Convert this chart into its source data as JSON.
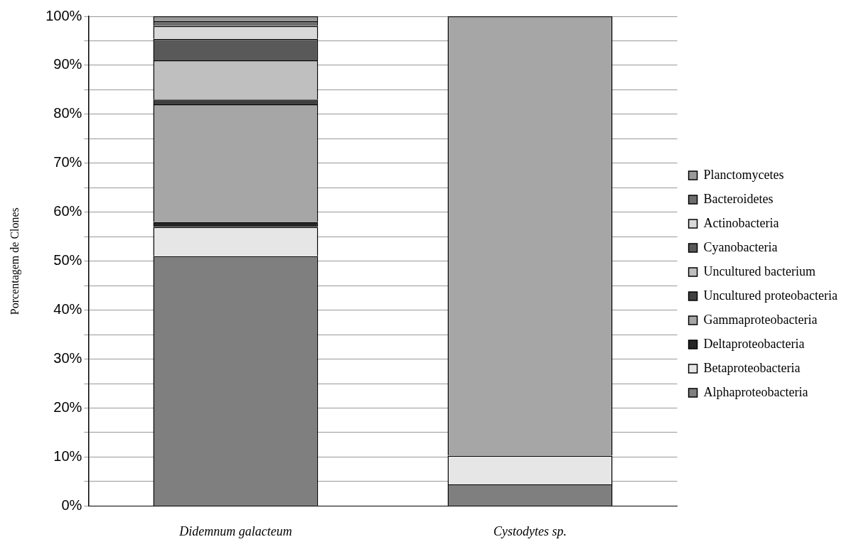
{
  "chart_data": {
    "type": "bar",
    "stacked": true,
    "ylabel": "Porcentagem de Clones",
    "categories": [
      "Didemnum galacteum",
      "Cystodytes sp."
    ],
    "series": [
      {
        "name": "Alphaproteobacteria",
        "color": "#7f7f7f",
        "values": [
          51,
          4.4
        ]
      },
      {
        "name": "Betaproteobacteria",
        "color": "#e6e6e6",
        "values": [
          6,
          5.9
        ]
      },
      {
        "name": "Deltaproteobacteria",
        "color": "#262626",
        "values": [
          1,
          null
        ]
      },
      {
        "name": "Gammaproteobacteria",
        "color": "#a6a6a6",
        "values": [
          24,
          89.7
        ]
      },
      {
        "name": "Uncultured proteobacteria",
        "color": "#404040",
        "values": [
          1,
          null
        ]
      },
      {
        "name": "Uncultured bacterium",
        "color": "#bfbfbf",
        "values": [
          8,
          null
        ]
      },
      {
        "name": "Cyanobacteria",
        "color": "#595959",
        "values": [
          4.4,
          null
        ]
      },
      {
        "name": "Actinobacteria",
        "color": "#d9d9d9",
        "values": [
          2.6,
          null
        ]
      },
      {
        "name": "Bacteroidetes",
        "color": "#6e6e6e",
        "values": [
          1,
          null
        ]
      },
      {
        "name": "Planctomycetes",
        "color": "#999999",
        "values": [
          1,
          null
        ]
      }
    ],
    "ylim": [
      0,
      100
    ],
    "yticks": [
      {
        "value": 0,
        "label": "0%"
      },
      {
        "value": 5,
        "label": null
      },
      {
        "value": 10,
        "label": "10%"
      },
      {
        "value": 15,
        "label": null
      },
      {
        "value": 20,
        "label": "20%"
      },
      {
        "value": 25,
        "label": null
      },
      {
        "value": 30,
        "label": "30%"
      },
      {
        "value": 35,
        "label": null
      },
      {
        "value": 40,
        "label": "40%"
      },
      {
        "value": 45,
        "label": null
      },
      {
        "value": 50,
        "label": "50%"
      },
      {
        "value": 55,
        "label": null
      },
      {
        "value": 60,
        "label": "60%"
      },
      {
        "value": 65,
        "label": null
      },
      {
        "value": 70,
        "label": "70%"
      },
      {
        "value": 75,
        "label": null
      },
      {
        "value": 80,
        "label": "80%"
      },
      {
        "value": 85,
        "label": null
      },
      {
        "value": 90,
        "label": "90%"
      },
      {
        "value": 95,
        "label": null
      },
      {
        "value": 100,
        "label": "100%"
      }
    ],
    "grid": "y",
    "legend": "right"
  }
}
